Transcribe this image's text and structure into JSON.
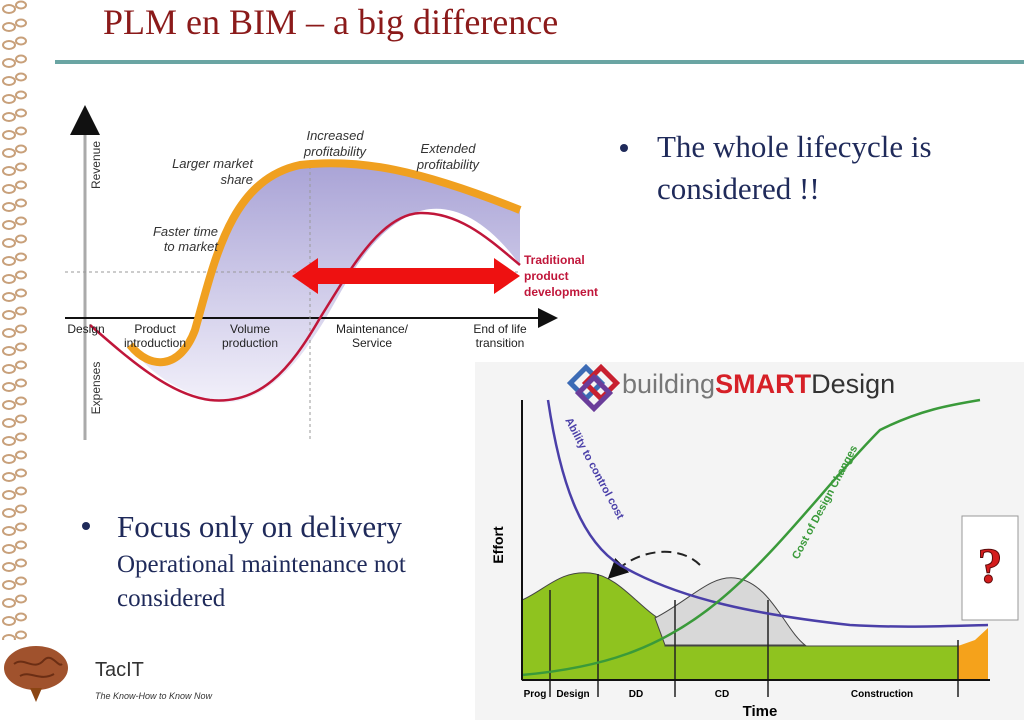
{
  "header": {
    "title": "PLM en BIM – a big difference"
  },
  "bullets": [
    {
      "text": "The whole lifecycle is considered !!"
    },
    {
      "text": "Focus only on delivery",
      "sub": "Operational maintenance not considered"
    }
  ],
  "plm_diagram": {
    "axis_labels": {
      "revenue": "Revenue",
      "expenses": "Expenses"
    },
    "annotations": {
      "increased": [
        "Increased",
        "profitability"
      ],
      "extended": [
        "Extended",
        "profitability"
      ],
      "market_share": [
        "Larger market",
        "share"
      ],
      "time_to_market": [
        "Faster time",
        "to market"
      ]
    },
    "phases": [
      [
        "Design"
      ],
      [
        "Product",
        "introduction"
      ],
      [
        "Volume",
        "production"
      ],
      [
        "Maintenance/",
        "Service"
      ],
      [
        "End of life",
        "transition"
      ]
    ],
    "traditional": [
      "Traditional",
      "product",
      "development"
    ]
  },
  "bim_diagram": {
    "logo": [
      "building",
      "SMART",
      "Design"
    ],
    "y_label": "Effort",
    "x_label": "Time",
    "curve_labels": [
      "Ability to control cost",
      "Cost of Design Changes"
    ],
    "phases": [
      "Prog",
      "Design",
      "DD",
      "CD",
      "Construction"
    ],
    "callout": "?"
  },
  "footer": {
    "brand": "TacIT",
    "tagline": "The Know-How to Know Now"
  }
}
